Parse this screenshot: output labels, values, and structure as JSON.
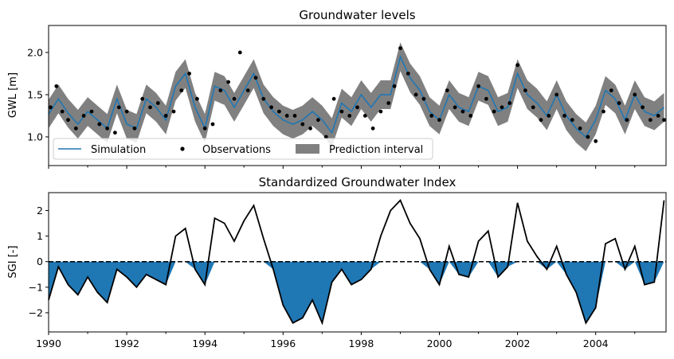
{
  "chart_data": [
    {
      "type": "line",
      "title": "Groundwater levels",
      "ylabel": "GWL [m]",
      "xlim": [
        1990.0,
        2005.8
      ],
      "ylim": [
        0.66,
        2.32
      ],
      "yticks": [
        "1.0",
        "1.5",
        "2.0"
      ],
      "legend": {
        "placement": "lower-left",
        "entries": [
          "Simulation",
          "Observations",
          "Prediction interval"
        ]
      },
      "grid": false,
      "colors": {
        "simulation": "#1f77b4",
        "observations": "#000000",
        "interval": "#808080"
      },
      "series": [
        {
          "name": "Simulation",
          "x": [
            1990.0,
            1990.25,
            1990.5,
            1990.75,
            1991.0,
            1991.25,
            1991.5,
            1991.75,
            1992.0,
            1992.25,
            1992.5,
            1992.75,
            1993.0,
            1993.25,
            1993.5,
            1993.75,
            1994.0,
            1994.25,
            1994.5,
            1994.75,
            1995.0,
            1995.25,
            1995.5,
            1995.75,
            1996.0,
            1996.25,
            1996.5,
            1996.75,
            1997.0,
            1997.25,
            1997.5,
            1997.75,
            1998.0,
            1998.25,
            1998.5,
            1998.75,
            1999.0,
            1999.25,
            1999.5,
            1999.75,
            2000.0,
            2000.25,
            2000.5,
            2000.75,
            2001.0,
            2001.25,
            2001.5,
            2001.75,
            2002.0,
            2002.25,
            2002.5,
            2002.75,
            2003.0,
            2003.25,
            2003.5,
            2003.75,
            2004.0,
            2004.25,
            2004.5,
            2004.75,
            2005.0,
            2005.25,
            2005.5,
            2005.75
          ],
          "y": [
            1.27,
            1.45,
            1.28,
            1.15,
            1.3,
            1.2,
            1.1,
            1.45,
            1.15,
            1.1,
            1.45,
            1.35,
            1.2,
            1.6,
            1.75,
            1.35,
            1.1,
            1.6,
            1.55,
            1.35,
            1.55,
            1.75,
            1.45,
            1.3,
            1.2,
            1.15,
            1.2,
            1.3,
            1.2,
            1.05,
            1.4,
            1.3,
            1.5,
            1.35,
            1.5,
            1.5,
            1.95,
            1.7,
            1.55,
            1.3,
            1.2,
            1.5,
            1.35,
            1.3,
            1.6,
            1.55,
            1.3,
            1.35,
            1.75,
            1.5,
            1.4,
            1.25,
            1.5,
            1.25,
            1.1,
            1.0,
            1.2,
            1.55,
            1.45,
            1.2,
            1.5,
            1.3,
            1.25,
            1.35
          ]
        },
        {
          "name": "Observations",
          "x": [
            1990.05,
            1990.2,
            1990.35,
            1990.5,
            1990.7,
            1990.9,
            1991.1,
            1991.3,
            1991.5,
            1991.7,
            1991.8,
            1992.0,
            1992.2,
            1992.4,
            1992.6,
            1992.8,
            1993.0,
            1993.2,
            1993.4,
            1993.6,
            1993.8,
            1994.0,
            1994.2,
            1994.4,
            1994.6,
            1994.75,
            1994.9,
            1995.1,
            1995.3,
            1995.5,
            1995.7,
            1995.9,
            1996.1,
            1996.3,
            1996.5,
            1996.7,
            1996.9,
            1997.1,
            1997.3,
            1997.5,
            1997.7,
            1997.9,
            1998.1,
            1998.3,
            1998.5,
            1998.7,
            1998.85,
            1999.0,
            1999.2,
            1999.4,
            1999.6,
            1999.8,
            2000.0,
            2000.2,
            2000.4,
            2000.6,
            2000.8,
            2001.0,
            2001.2,
            2001.4,
            2001.6,
            2001.8,
            2002.0,
            2002.2,
            2002.4,
            2002.6,
            2002.8,
            2003.0,
            2003.2,
            2003.4,
            2003.6,
            2003.8,
            2004.0,
            2004.2,
            2004.4,
            2004.6,
            2004.8,
            2005.0,
            2005.2,
            2005.4,
            2005.6,
            2005.75
          ],
          "y": [
            1.35,
            1.6,
            1.3,
            1.2,
            1.1,
            1.25,
            1.3,
            1.15,
            1.1,
            1.05,
            1.35,
            1.3,
            1.1,
            1.45,
            1.35,
            1.4,
            1.25,
            1.3,
            1.55,
            1.75,
            1.45,
            1.1,
            1.15,
            1.55,
            1.65,
            1.45,
            2.0,
            1.55,
            1.7,
            1.45,
            1.35,
            1.3,
            1.25,
            1.25,
            1.15,
            1.1,
            1.2,
            1.0,
            1.45,
            1.3,
            1.25,
            1.35,
            1.25,
            1.1,
            1.3,
            1.4,
            1.6,
            2.05,
            1.75,
            1.5,
            1.45,
            1.25,
            1.2,
            1.55,
            1.35,
            1.3,
            1.25,
            1.6,
            1.45,
            1.3,
            1.35,
            1.4,
            1.85,
            1.55,
            1.35,
            1.2,
            1.25,
            1.5,
            1.25,
            1.2,
            1.1,
            1.0,
            0.95,
            1.3,
            1.55,
            1.4,
            1.2,
            1.5,
            1.35,
            1.2,
            1.25,
            1.2
          ]
        }
      ]
    },
    {
      "type": "area",
      "title": "Standardized Groundwater Index",
      "ylabel": "SGI [-]",
      "xlim": [
        1990.0,
        2005.8
      ],
      "ylim": [
        -2.75,
        2.7
      ],
      "yticks": [
        "−2",
        "−1",
        "0",
        "1",
        "2"
      ],
      "xticks": [
        "1990",
        "1992",
        "1994",
        "1996",
        "1998",
        "2000",
        "2002",
        "2004"
      ],
      "grid": false,
      "colors": {
        "fill_negative": "#1f77b4",
        "line": "#000000",
        "zero_line": "#000000"
      },
      "series": [
        {
          "x": [
            1990.0,
            1990.25,
            1990.5,
            1990.75,
            1991.0,
            1991.25,
            1991.5,
            1991.75,
            1992.0,
            1992.25,
            1992.5,
            1992.75,
            1993.0,
            1993.25,
            1993.5,
            1993.75,
            1994.0,
            1994.25,
            1994.5,
            1994.75,
            1995.0,
            1995.25,
            1995.5,
            1995.75,
            1996.0,
            1996.25,
            1996.5,
            1996.75,
            1997.0,
            1997.25,
            1997.5,
            1997.75,
            1998.0,
            1998.25,
            1998.5,
            1998.75,
            1999.0,
            1999.25,
            1999.5,
            1999.75,
            2000.0,
            2000.25,
            2000.5,
            2000.75,
            2001.0,
            2001.25,
            2001.5,
            2001.75,
            2002.0,
            2002.25,
            2002.5,
            2002.75,
            2003.0,
            2003.25,
            2003.5,
            2003.75,
            2004.0,
            2004.25,
            2004.5,
            2004.75,
            2005.0,
            2005.25,
            2005.5,
            2005.75
          ],
          "y": [
            -1.5,
            -0.2,
            -0.9,
            -1.3,
            -0.6,
            -1.2,
            -1.6,
            -0.3,
            -0.6,
            -1.0,
            -0.5,
            -0.7,
            -0.9,
            1.0,
            1.3,
            -0.3,
            -0.9,
            1.7,
            1.5,
            0.8,
            1.6,
            2.2,
            0.9,
            -0.3,
            -1.7,
            -2.4,
            -2.2,
            -1.5,
            -2.4,
            -0.8,
            -0.3,
            -0.9,
            -0.7,
            -0.3,
            1.0,
            2.0,
            2.4,
            1.5,
            0.9,
            -0.3,
            -0.9,
            0.6,
            -0.5,
            -0.6,
            0.8,
            1.2,
            -0.6,
            -0.2,
            2.3,
            0.8,
            0.2,
            -0.3,
            0.6,
            -0.5,
            -1.2,
            -2.4,
            -1.8,
            0.7,
            0.9,
            -0.3,
            0.6,
            -0.9,
            -0.8,
            2.4
          ]
        }
      ]
    }
  ]
}
